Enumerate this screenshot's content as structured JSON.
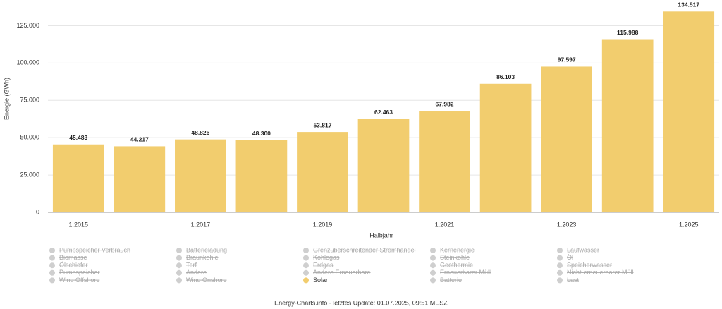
{
  "chart_data": {
    "type": "bar",
    "y_label": "Energie (GWh)",
    "x_label": "Halbjahr",
    "categories": [
      "1.2015",
      null,
      "1.2017",
      null,
      "1.2019",
      null,
      "1.2021",
      null,
      "1.2023",
      null,
      "1.2025"
    ],
    "series": [
      {
        "name": "Solar",
        "color": "#f2cd6e",
        "values": [
          45483,
          44217,
          48826,
          48300,
          53817,
          62463,
          67982,
          86103,
          97597,
          115988,
          134517
        ],
        "value_labels": [
          "45.483",
          "44.217",
          "48.826",
          "48.300",
          "53.817",
          "62.463",
          "67.982",
          "86.103",
          "97.597",
          "115.988",
          "134.517"
        ]
      }
    ],
    "ylim": [
      0,
      137500
    ],
    "yticks": [
      0,
      {
        "value": 25000,
        "label": "25.000"
      },
      {
        "value": 50000,
        "label": "50.000"
      },
      {
        "value": 75000,
        "label": "75.000"
      },
      {
        "value": 100000,
        "label": "100.000"
      },
      {
        "value": 125000,
        "label": "125.000"
      }
    ],
    "grid": true,
    "hidden_series": [
      "Pumpspeicher Verbrauch",
      "Batterieladung",
      "Grenzüberschreitender Stromhandel",
      "Kernenergie",
      "Laufwasser",
      "Biomasse",
      "Braunkohle",
      "Kohlegas",
      "Steinkohle",
      "Öl",
      "Ölschiefer",
      "Torf",
      "Erdgas",
      "Geothermie",
      "Speicherwasser",
      "Pumpspeicher",
      "Andere",
      "Andere Erneuerbare",
      "Erneuerbarer Müll",
      "Nicht-erneuerbarer Müll",
      "Wind Offshore",
      "Wind Onshore",
      "Batterie",
      "Last"
    ],
    "footer": "Energy-Charts.info - letztes Update: 01.07.2025, 09:51 MESZ"
  }
}
